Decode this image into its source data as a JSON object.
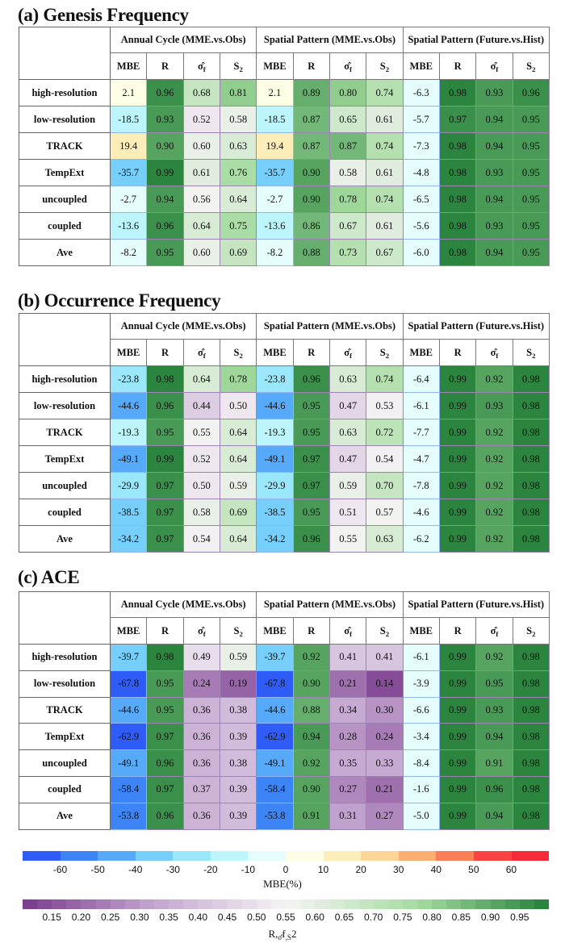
{
  "panels": [
    {
      "title": "(a) Genesis Frequency",
      "groups": [
        "Annual Cycle (MME.vs.Obs)",
        "Spatial Pattern (MME.vs.Obs)",
        "Spatial Pattern (Future.vs.Hist)"
      ],
      "rows": [
        {
          "label": "high-resolution",
          "values": [
            "2.1",
            "0.96",
            "0.68",
            "0.81",
            "2.1",
            "0.89",
            "0.80",
            "0.74",
            "-6.3",
            "0.98",
            "0.93",
            "0.96"
          ]
        },
        {
          "label": "low-resolution",
          "values": [
            "-18.5",
            "0.93",
            "0.52",
            "0.58",
            "-18.5",
            "0.87",
            "0.65",
            "0.61",
            "-5.7",
            "0.97",
            "0.94",
            "0.95"
          ]
        },
        {
          "label": "TRACK",
          "values": [
            "19.4",
            "0.90",
            "0.60",
            "0.63",
            "19.4",
            "0.87",
            "0.87",
            "0.74",
            "-7.3",
            "0.98",
            "0.94",
            "0.95"
          ]
        },
        {
          "label": "TempExt",
          "values": [
            "-35.7",
            "0.99",
            "0.61",
            "0.76",
            "-35.7",
            "0.90",
            "0.58",
            "0.61",
            "-4.8",
            "0.98",
            "0.93",
            "0.95"
          ]
        },
        {
          "label": "uncoupled",
          "values": [
            "-2.7",
            "0.94",
            "0.56",
            "0.64",
            "-2.7",
            "0.90",
            "0.78",
            "0.74",
            "-6.5",
            "0.98",
            "0.94",
            "0.95"
          ]
        },
        {
          "label": "coupled",
          "values": [
            "-13.6",
            "0.96",
            "0.64",
            "0.75",
            "-13.6",
            "0.86",
            "0.67",
            "0.61",
            "-5.6",
            "0.98",
            "0.93",
            "0.95"
          ]
        },
        {
          "label": "Ave",
          "values": [
            "-8.2",
            "0.95",
            "0.60",
            "0.69",
            "-8.2",
            "0.88",
            "0.73",
            "0.67",
            "-6.0",
            "0.98",
            "0.94",
            "0.95"
          ]
        }
      ]
    },
    {
      "title": "(b) Occurrence Frequency",
      "groups": [
        "Annual Cycle (MME.vs.Obs)",
        "Spatial Pattern (MME.vs.Obs)",
        "Spatial Pattern (Future.vs.Hist)"
      ],
      "rows": [
        {
          "label": "high-resolution",
          "values": [
            "-23.8",
            "0.98",
            "0.64",
            "0.78",
            "-23.8",
            "0.96",
            "0.63",
            "0.74",
            "-6.4",
            "0.99",
            "0.92",
            "0.98"
          ]
        },
        {
          "label": "low-resolution",
          "values": [
            "-44.6",
            "0.96",
            "0.44",
            "0.50",
            "-44.6",
            "0.95",
            "0.47",
            "0.53",
            "-6.1",
            "0.99",
            "0.93",
            "0.98"
          ]
        },
        {
          "label": "TRACK",
          "values": [
            "-19.3",
            "0.95",
            "0.55",
            "0.64",
            "-19.3",
            "0.95",
            "0.63",
            "0.72",
            "-7.7",
            "0.99",
            "0.92",
            "0.98"
          ]
        },
        {
          "label": "TempExt",
          "values": [
            "-49.1",
            "0.99",
            "0.52",
            "0.64",
            "-49.1",
            "0.97",
            "0.47",
            "0.54",
            "-4.7",
            "0.99",
            "0.92",
            "0.98"
          ]
        },
        {
          "label": "uncoupled",
          "values": [
            "-29.9",
            "0.97",
            "0.50",
            "0.59",
            "-29.9",
            "0.97",
            "0.59",
            "0.70",
            "-7.8",
            "0.99",
            "0.92",
            "0.98"
          ]
        },
        {
          "label": "coupled",
          "values": [
            "-38.5",
            "0.97",
            "0.58",
            "0.69",
            "-38.5",
            "0.95",
            "0.51",
            "0.57",
            "-4.6",
            "0.99",
            "0.92",
            "0.98"
          ]
        },
        {
          "label": "Ave",
          "values": [
            "-34.2",
            "0.97",
            "0.54",
            "0.64",
            "-34.2",
            "0.96",
            "0.55",
            "0.63",
            "-6.2",
            "0.99",
            "0.92",
            "0.98"
          ]
        }
      ]
    },
    {
      "title": "(c) ACE",
      "groups": [
        "Annual Cycle (MME.vs.Obs)",
        "Spatial Pattern (MME.vs.Obs)",
        "Spatial Pattern (Future.vs.Hist)"
      ],
      "rows": [
        {
          "label": "high-resolution",
          "values": [
            "-39.7",
            "0.98",
            "0.49",
            "0.59",
            "-39.7",
            "0.92",
            "0.41",
            "0.41",
            "-6.1",
            "0.99",
            "0.92",
            "0.98"
          ]
        },
        {
          "label": "low-resolution",
          "values": [
            "-67.8",
            "0.95",
            "0.24",
            "0.19",
            "-67.8",
            "0.90",
            "0.21",
            "0.14",
            "-3.9",
            "0.99",
            "0.95",
            "0.98"
          ]
        },
        {
          "label": "TRACK",
          "values": [
            "-44.6",
            "0.95",
            "0.36",
            "0.38",
            "-44.6",
            "0.88",
            "0.34",
            "0.30",
            "-6.6",
            "0.99",
            "0.93",
            "0.98"
          ]
        },
        {
          "label": "TempExt",
          "values": [
            "-62.9",
            "0.97",
            "0.36",
            "0.39",
            "-62.9",
            "0.94",
            "0.28",
            "0.24",
            "-3.4",
            "0.99",
            "0.94",
            "0.98"
          ]
        },
        {
          "label": "uncoupled",
          "values": [
            "-49.1",
            "0.96",
            "0.36",
            "0.38",
            "-49.1",
            "0.92",
            "0.35",
            "0.33",
            "-8.4",
            "0.99",
            "0.91",
            "0.98"
          ]
        },
        {
          "label": "coupled",
          "values": [
            "-58.4",
            "0.97",
            "0.37",
            "0.39",
            "-58.4",
            "0.90",
            "0.27",
            "0.21",
            "-1.6",
            "0.99",
            "0.96",
            "0.98"
          ]
        },
        {
          "label": "Ave",
          "values": [
            "-53.8",
            "0.96",
            "0.36",
            "0.39",
            "-53.8",
            "0.91",
            "0.31",
            "0.27",
            "-5.0",
            "0.99",
            "0.94",
            "0.98"
          ]
        }
      ]
    }
  ],
  "columns": [
    {
      "base": "MBE",
      "sub": ""
    },
    {
      "base": "R",
      "sub": ""
    },
    {
      "base": "σ̂",
      "sub": "f"
    },
    {
      "base": "S",
      "sub": "2"
    }
  ],
  "chart_data": {
    "type": "heatmap",
    "note": "values stored in panels[].rows[].values; MBE columns use diverging blue-red scale, R/σ̂f/S2 use purple-green scale",
    "mbe_colorbar": {
      "label": "MBE(%)",
      "range": [
        -70,
        70
      ],
      "ticks": [
        "-60",
        "-50",
        "-40",
        "-30",
        "-20",
        "-10",
        "0",
        "10",
        "20",
        "30",
        "40",
        "50",
        "60"
      ],
      "colors": [
        "#2f5cf6",
        "#3d85f7",
        "#56aaf9",
        "#76cffb",
        "#9ae6fb",
        "#bcf5fb",
        "#e6fdfd",
        "#fefde6",
        "#fdedb8",
        "#fdd596",
        "#fcaf70",
        "#fb7f56",
        "#fb4343",
        "#f72a38"
      ]
    },
    "metric_colorbar": {
      "label_parts": [
        "R,",
        "σ̂",
        "f",
        ",S",
        "2"
      ],
      "range": [
        0.1,
        1.0
      ],
      "ticks": [
        "0.15",
        "0.20",
        "0.25",
        "0.30",
        "0.35",
        "0.40",
        "0.45",
        "0.50",
        "0.55",
        "0.60",
        "0.65",
        "0.70",
        "0.75",
        "0.80",
        "0.85",
        "0.90",
        "0.95"
      ],
      "stops": [
        [
          0.1,
          "#793a8c"
        ],
        [
          0.325,
          "#c4a6d0"
        ],
        [
          0.55,
          "#f6f4f6"
        ],
        [
          0.775,
          "#a6dca0"
        ],
        [
          1.0,
          "#248039"
        ]
      ]
    }
  }
}
